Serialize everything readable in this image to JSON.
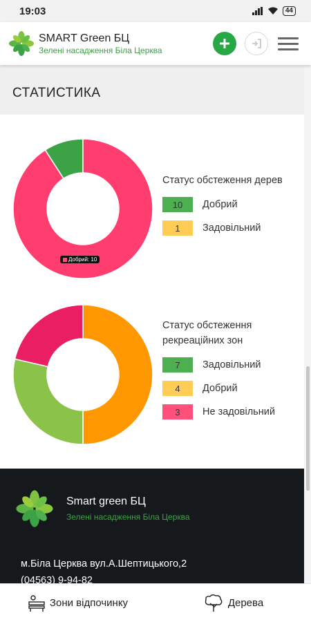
{
  "statusbar": {
    "time": "19:03",
    "battery": "44"
  },
  "header": {
    "title": "SMART Green БЦ",
    "subtitle": "Зелені насадження Біла Церква",
    "icons": [
      "leaf-logo-icon",
      "plus-icon",
      "login-icon",
      "hamburger-menu-icon"
    ],
    "accent": "#28a745"
  },
  "page": {
    "title": "СТАТИСТИКА"
  },
  "charts": {
    "trees": {
      "title": "Статус обстеження дерев",
      "tooltip": "Добрий: 10"
    },
    "zones": {
      "title_line1": "Статус обстеження",
      "title_line2": "рекреаційних зон"
    }
  },
  "chart_data": [
    {
      "type": "pie",
      "title": "Статус обстеження дерев",
      "categories": [
        "Добрий",
        "Задовільний"
      ],
      "values": [
        10,
        1
      ],
      "colors": [
        "#ff3d6e",
        "#3ba345"
      ],
      "legend_colors": [
        "#4caf50",
        "#ffcc55"
      ],
      "legend": "right"
    },
    {
      "type": "pie",
      "title": "Статус обстеження рекреаційних зон",
      "categories": [
        "Задовільний",
        "Добрий",
        "Не задовільний"
      ],
      "values": [
        7,
        4,
        3
      ],
      "colors": [
        "#ff9800",
        "#8bc34a",
        "#e91e63"
      ],
      "legend_colors": [
        "#4caf50",
        "#ffcc55",
        "#ff4f7b"
      ],
      "legend": "right"
    }
  ],
  "footer": {
    "title": "Smart green БЦ",
    "subtitle": "Зелені насадження Біла Церква",
    "address": "м.Біла Церква вул.А.Шептицького,2",
    "phone": "(04563) 9-94-82"
  },
  "bottom_nav": {
    "zones_label": "Зони відпочинку",
    "trees_label": "Дерева"
  }
}
